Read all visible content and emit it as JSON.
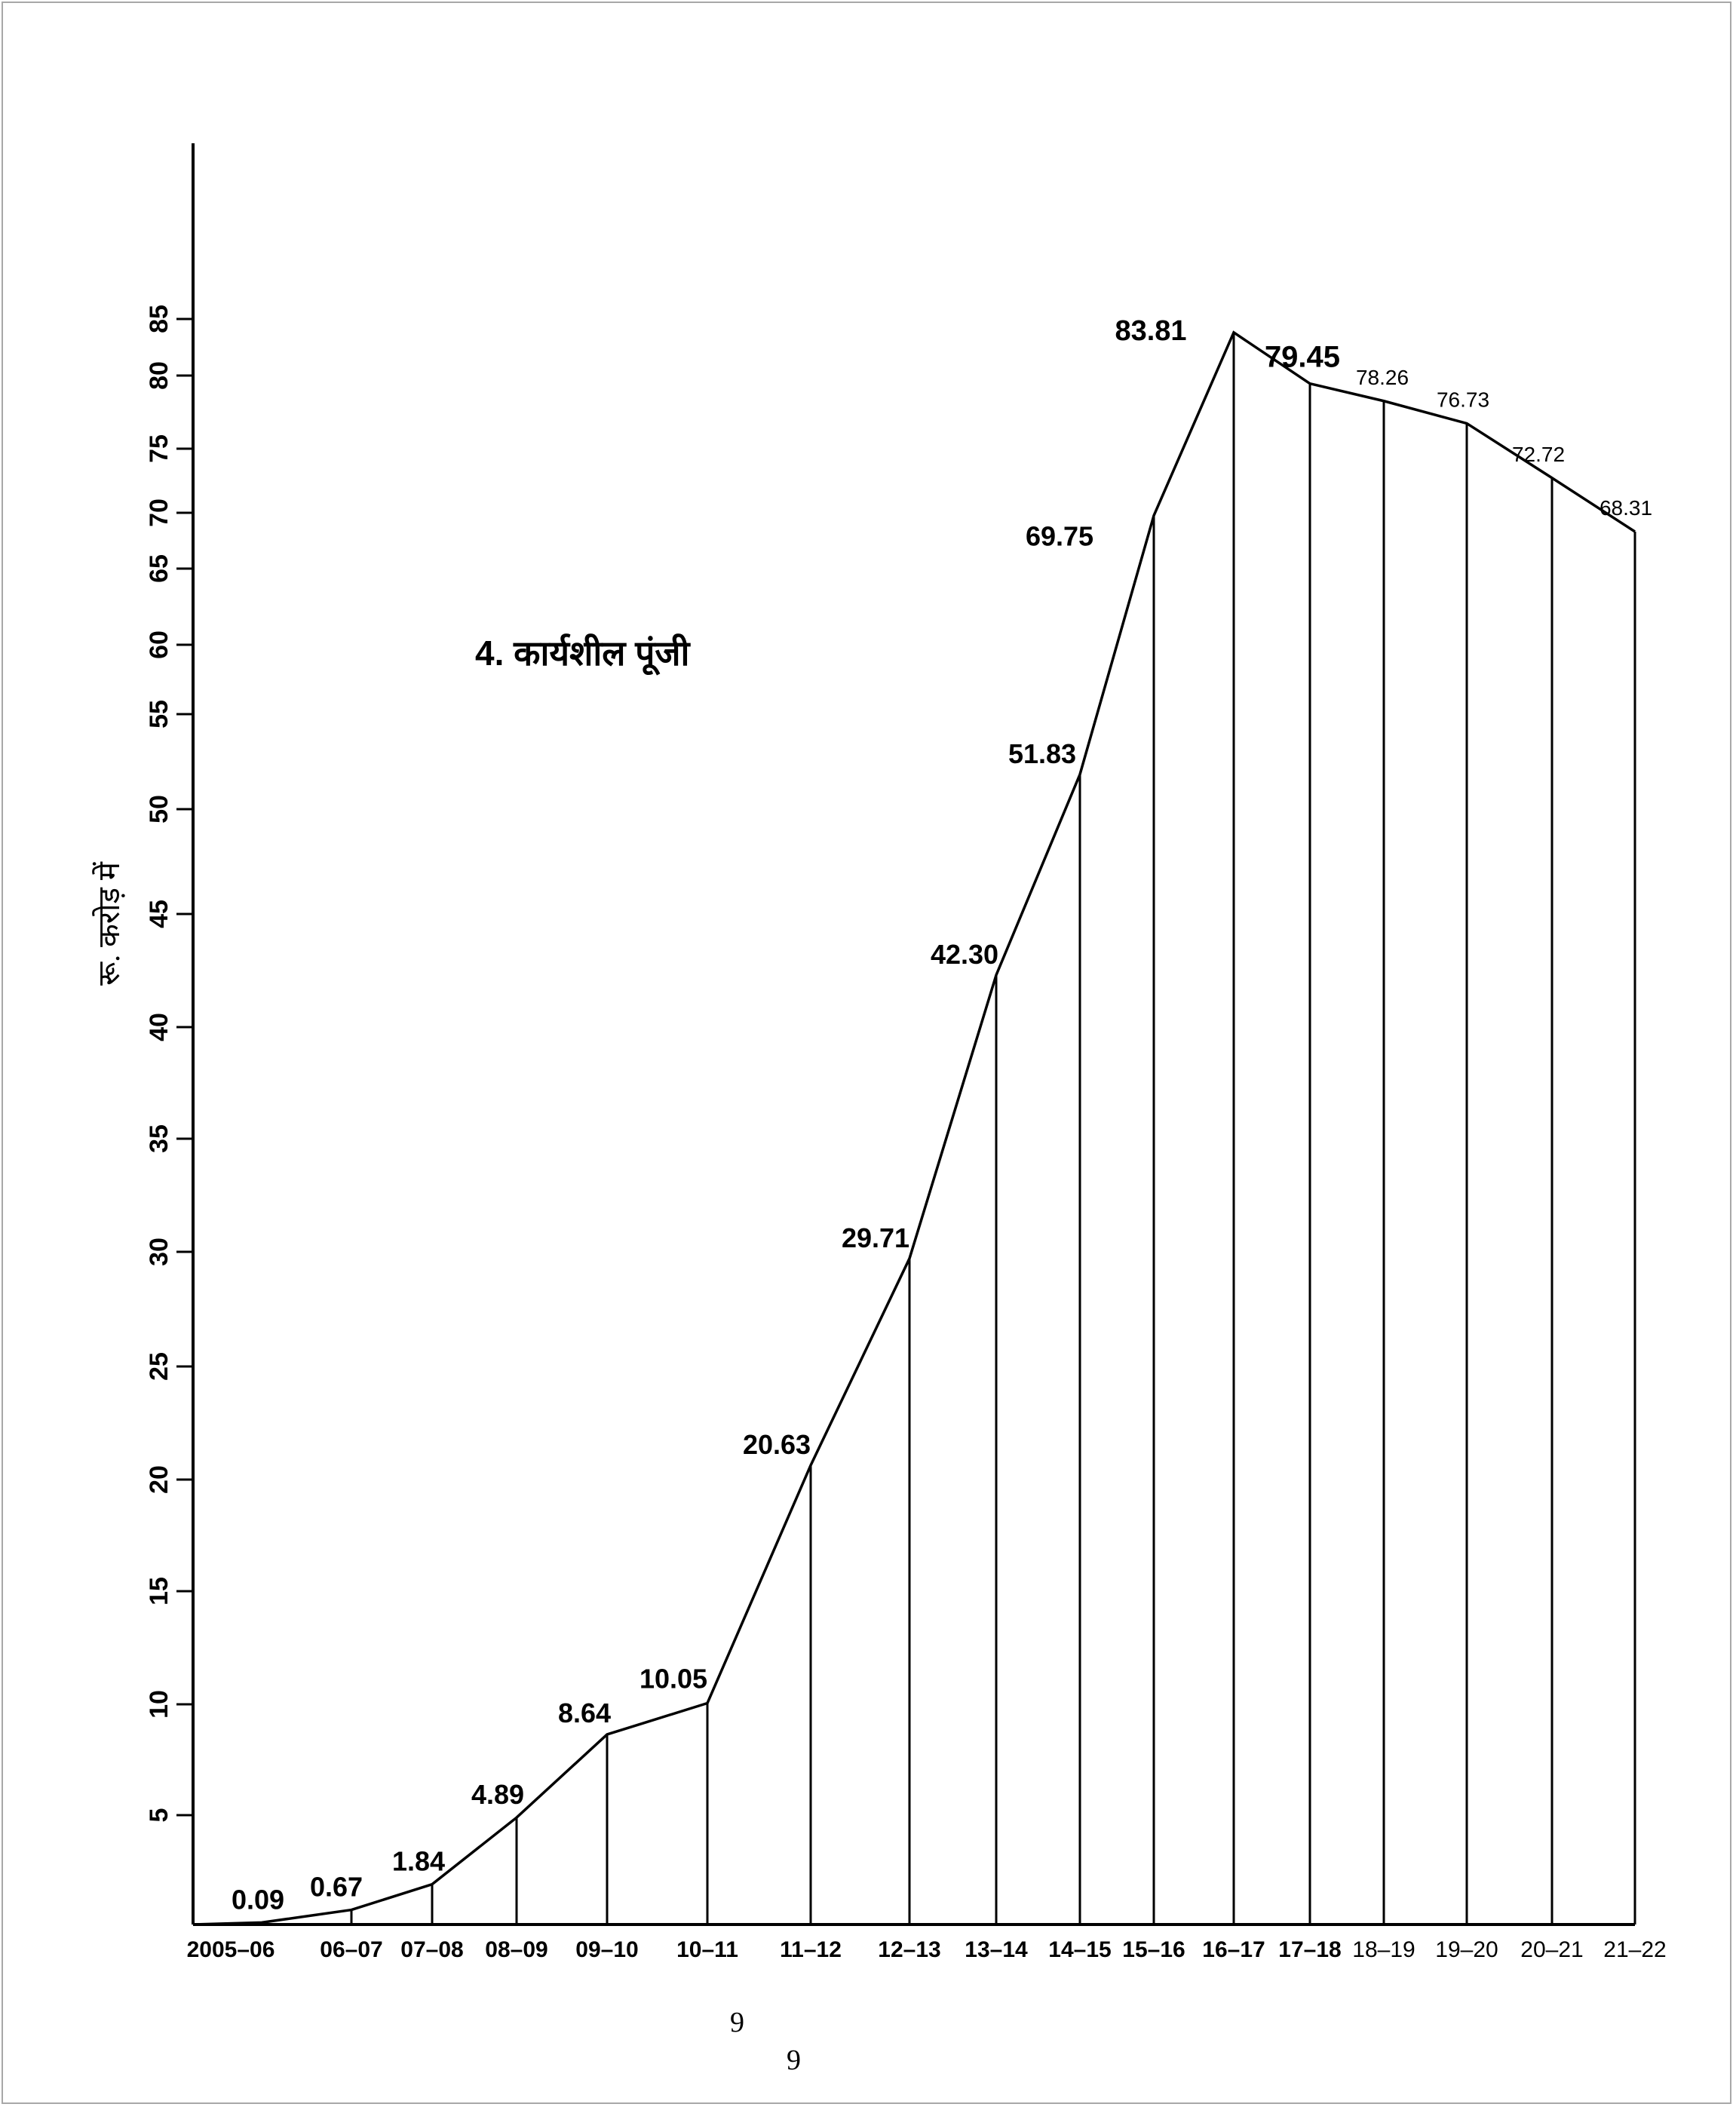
{
  "chart_data": {
    "type": "line",
    "title": "4. कार्यशील पूंजी",
    "ylabel": "रू. करोड़ में",
    "xlabel": "",
    "categories": [
      "2005–06",
      "06–07",
      "07–08",
      "08–09",
      "09–10",
      "10–11",
      "11–12",
      "12–13",
      "13–14",
      "14–15",
      "15–16",
      "16–17",
      "17–18",
      "18–19",
      "19–20",
      "20–21",
      "21–22"
    ],
    "series": [
      {
        "values": [
          0.09,
          0.67,
          1.84,
          4.89,
          8.64,
          10.05,
          20.63,
          29.71,
          42.3,
          51.83,
          69.75,
          83.81,
          79.45,
          78.26,
          76.73,
          72.72,
          68.31
        ]
      }
    ],
    "data_labels": [
      "0.09",
      "0.67",
      "1.84",
      "4.89",
      "8.64",
      "10.05",
      "20.63",
      "29.71",
      "42.30",
      "51.83",
      "69.75",
      "83.81",
      "79.45",
      "78.26",
      "76.73",
      "72.72",
      "68.31"
    ],
    "yticks": [
      "5",
      "10",
      "15",
      "20",
      "25",
      "30",
      "35",
      "40",
      "45",
      "50",
      "55",
      "60",
      "65",
      "70",
      "75",
      "80",
      "85"
    ],
    "drop_lines": true,
    "grid": false,
    "legend": "none"
  },
  "page_numbers": [
    "9",
    "9"
  ],
  "colors": {
    "line": "#000000",
    "frame": "#a8a8a8",
    "background": "#ffffff"
  }
}
